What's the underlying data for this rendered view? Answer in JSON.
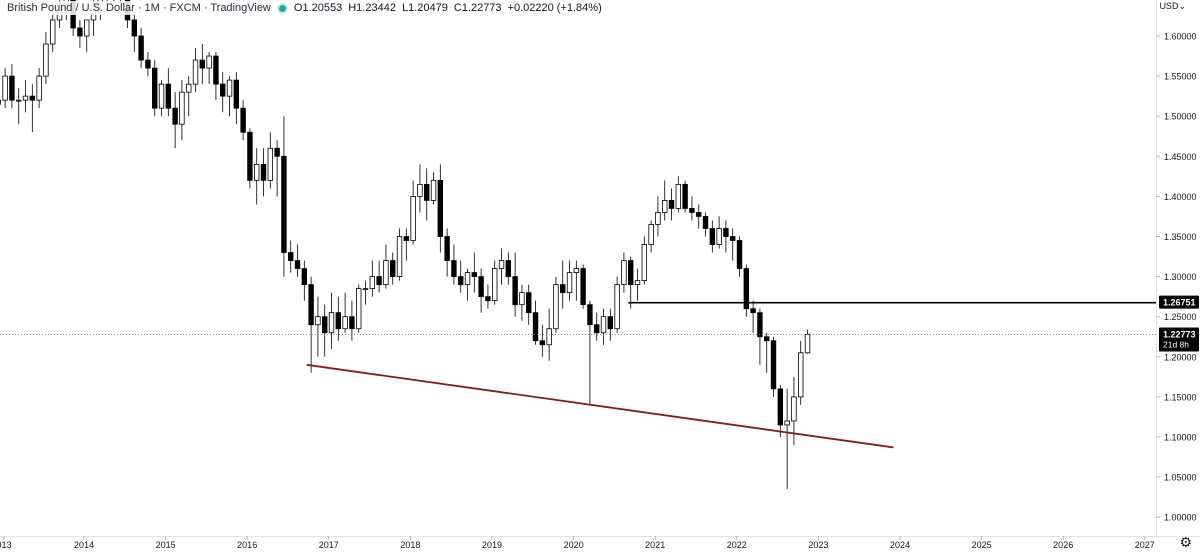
{
  "header": {
    "symbol": "British Pound / U.S. Dollar · 1M · FXCM · TradingView",
    "open_label": "O",
    "open": "1.20553",
    "high_label": "H",
    "high": "1.23442",
    "low_label": "L",
    "low": "1.20479",
    "close_label": "C",
    "close": "1.22773",
    "change": "+0.02220 (+1.84%)"
  },
  "price_scale": {
    "currency": "USD"
  },
  "chart_data": {
    "type": "candlestick",
    "interval": "1M",
    "y_ticks": [
      "1.60000",
      "1.55000",
      "1.50000",
      "1.45000",
      "1.40000",
      "1.35000",
      "1.30000",
      "1.25000",
      "1.20000",
      "1.15000",
      "1.10000",
      "1.05000",
      "1.00000"
    ],
    "x_ticks": [
      "013",
      "2014",
      "2015",
      "2016",
      "2017",
      "2018",
      "2019",
      "2020",
      "2021",
      "2022",
      "2023",
      "2024",
      "2025",
      "2026",
      "2027"
    ],
    "ylim": [
      0.985,
      1.665
    ],
    "xlim": [
      2013.0,
      2027.0
    ],
    "last_price": {
      "value": "1.22773",
      "countdown": "21d 8h"
    },
    "horizontal_level": {
      "value": "1.26751",
      "from_x": 2020.67
    },
    "trendline": {
      "from": [
        2016.73,
        1.19
      ],
      "to": [
        2023.92,
        1.087
      ],
      "color": "#8b1a1a"
    },
    "candles": [
      [
        1.515,
        1.54,
        1.505,
        1.52
      ],
      [
        1.52,
        1.56,
        1.51,
        1.55
      ],
      [
        1.55,
        1.565,
        1.51,
        1.52
      ],
      [
        1.52,
        1.535,
        1.49,
        1.52
      ],
      [
        1.52,
        1.545,
        1.505,
        1.525
      ],
      [
        1.525,
        1.54,
        1.48,
        1.52
      ],
      [
        1.52,
        1.56,
        1.51,
        1.55
      ],
      [
        1.55,
        1.605,
        1.54,
        1.59
      ],
      [
        1.59,
        1.64,
        1.58,
        1.62
      ],
      [
        1.62,
        1.65,
        1.61,
        1.64
      ],
      [
        1.64,
        1.66,
        1.62,
        1.65
      ],
      [
        1.65,
        1.66,
        1.6,
        1.61
      ],
      [
        1.61,
        1.62,
        1.585,
        1.6
      ],
      [
        1.6,
        1.62,
        1.58,
        1.62
      ],
      [
        1.62,
        1.66,
        1.6,
        1.64
      ],
      [
        1.64,
        1.67,
        1.62,
        1.655
      ],
      [
        1.655,
        1.665,
        1.63,
        1.66
      ],
      [
        1.66,
        1.67,
        1.64,
        1.65
      ],
      [
        1.65,
        1.665,
        1.635,
        1.65
      ],
      [
        1.65,
        1.66,
        1.61,
        1.62
      ],
      [
        1.62,
        1.63,
        1.58,
        1.6
      ],
      [
        1.6,
        1.61,
        1.56,
        1.57
      ],
      [
        1.57,
        1.58,
        1.55,
        1.56
      ],
      [
        1.56,
        1.57,
        1.5,
        1.51
      ],
      [
        1.51,
        1.545,
        1.5,
        1.54
      ],
      [
        1.54,
        1.56,
        1.5,
        1.51
      ],
      [
        1.51,
        1.53,
        1.46,
        1.49
      ],
      [
        1.49,
        1.545,
        1.47,
        1.53
      ],
      [
        1.53,
        1.55,
        1.5,
        1.54
      ],
      [
        1.54,
        1.585,
        1.53,
        1.57
      ],
      [
        1.57,
        1.59,
        1.54,
        1.56
      ],
      [
        1.56,
        1.58,
        1.54,
        1.575
      ],
      [
        1.575,
        1.58,
        1.52,
        1.54
      ],
      [
        1.54,
        1.555,
        1.505,
        1.525
      ],
      [
        1.525,
        1.55,
        1.5,
        1.545
      ],
      [
        1.545,
        1.555,
        1.49,
        1.51
      ],
      [
        1.51,
        1.52,
        1.47,
        1.48
      ],
      [
        1.48,
        1.485,
        1.41,
        1.42
      ],
      [
        1.42,
        1.46,
        1.39,
        1.44
      ],
      [
        1.44,
        1.46,
        1.4,
        1.42
      ],
      [
        1.42,
        1.48,
        1.41,
        1.46
      ],
      [
        1.46,
        1.47,
        1.4,
        1.45
      ],
      [
        1.45,
        1.5,
        1.3,
        1.33
      ],
      [
        1.33,
        1.345,
        1.305,
        1.32
      ],
      [
        1.32,
        1.34,
        1.3,
        1.31
      ],
      [
        1.31,
        1.32,
        1.27,
        1.29
      ],
      [
        1.29,
        1.3,
        1.18,
        1.24
      ],
      [
        1.24,
        1.275,
        1.2,
        1.25
      ],
      [
        1.25,
        1.265,
        1.2,
        1.23
      ],
      [
        1.23,
        1.28,
        1.21,
        1.255
      ],
      [
        1.255,
        1.275,
        1.22,
        1.235
      ],
      [
        1.235,
        1.28,
        1.23,
        1.25
      ],
      [
        1.25,
        1.27,
        1.22,
        1.235
      ],
      [
        1.235,
        1.29,
        1.23,
        1.285
      ],
      [
        1.285,
        1.295,
        1.265,
        1.285
      ],
      [
        1.285,
        1.32,
        1.275,
        1.3
      ],
      [
        1.3,
        1.32,
        1.28,
        1.29
      ],
      [
        1.29,
        1.34,
        1.285,
        1.32
      ],
      [
        1.32,
        1.33,
        1.29,
        1.3
      ],
      [
        1.3,
        1.36,
        1.295,
        1.35
      ],
      [
        1.35,
        1.36,
        1.32,
        1.345
      ],
      [
        1.345,
        1.42,
        1.34,
        1.4
      ],
      [
        1.4,
        1.44,
        1.38,
        1.415
      ],
      [
        1.415,
        1.435,
        1.37,
        1.395
      ],
      [
        1.395,
        1.43,
        1.39,
        1.42
      ],
      [
        1.42,
        1.44,
        1.33,
        1.35
      ],
      [
        1.35,
        1.36,
        1.3,
        1.32
      ],
      [
        1.32,
        1.34,
        1.29,
        1.3
      ],
      [
        1.3,
        1.32,
        1.28,
        1.29
      ],
      [
        1.29,
        1.31,
        1.27,
        1.305
      ],
      [
        1.305,
        1.33,
        1.28,
        1.3
      ],
      [
        1.3,
        1.31,
        1.255,
        1.275
      ],
      [
        1.275,
        1.29,
        1.26,
        1.27
      ],
      [
        1.27,
        1.32,
        1.265,
        1.31
      ],
      [
        1.31,
        1.335,
        1.29,
        1.32
      ],
      [
        1.32,
        1.33,
        1.29,
        1.3
      ],
      [
        1.3,
        1.33,
        1.25,
        1.265
      ],
      [
        1.265,
        1.29,
        1.245,
        1.28
      ],
      [
        1.28,
        1.29,
        1.24,
        1.255
      ],
      [
        1.255,
        1.27,
        1.215,
        1.22
      ],
      [
        1.22,
        1.24,
        1.2,
        1.215
      ],
      [
        1.215,
        1.26,
        1.195,
        1.235
      ],
      [
        1.235,
        1.3,
        1.23,
        1.29
      ],
      [
        1.29,
        1.32,
        1.26,
        1.28
      ],
      [
        1.28,
        1.32,
        1.27,
        1.305
      ],
      [
        1.305,
        1.32,
        1.27,
        1.31
      ],
      [
        1.31,
        1.315,
        1.26,
        1.265
      ],
      [
        1.265,
        1.27,
        1.14,
        1.24
      ],
      [
        1.24,
        1.255,
        1.22,
        1.23
      ],
      [
        1.23,
        1.26,
        1.215,
        1.25
      ],
      [
        1.25,
        1.26,
        1.22,
        1.235
      ],
      [
        1.235,
        1.3,
        1.23,
        1.29
      ],
      [
        1.29,
        1.33,
        1.28,
        1.32
      ],
      [
        1.32,
        1.325,
        1.26,
        1.29
      ],
      [
        1.29,
        1.31,
        1.27,
        1.295
      ],
      [
        1.295,
        1.35,
        1.29,
        1.34
      ],
      [
        1.34,
        1.37,
        1.33,
        1.365
      ],
      [
        1.365,
        1.4,
        1.35,
        1.38
      ],
      [
        1.38,
        1.42,
        1.37,
        1.395
      ],
      [
        1.395,
        1.41,
        1.37,
        1.385
      ],
      [
        1.385,
        1.425,
        1.38,
        1.415
      ],
      [
        1.415,
        1.42,
        1.38,
        1.385
      ],
      [
        1.385,
        1.4,
        1.37,
        1.38
      ],
      [
        1.38,
        1.39,
        1.36,
        1.375
      ],
      [
        1.375,
        1.38,
        1.35,
        1.36
      ],
      [
        1.36,
        1.37,
        1.33,
        1.34
      ],
      [
        1.34,
        1.375,
        1.335,
        1.36
      ],
      [
        1.36,
        1.37,
        1.33,
        1.35
      ],
      [
        1.35,
        1.36,
        1.32,
        1.345
      ],
      [
        1.345,
        1.35,
        1.3,
        1.31
      ],
      [
        1.31,
        1.315,
        1.25,
        1.26
      ],
      [
        1.26,
        1.27,
        1.23,
        1.255
      ],
      [
        1.255,
        1.26,
        1.19,
        1.225
      ],
      [
        1.225,
        1.23,
        1.18,
        1.22
      ],
      [
        1.22,
        1.225,
        1.15,
        1.16
      ],
      [
        1.16,
        1.165,
        1.1,
        1.115
      ],
      [
        1.115,
        1.16,
        1.035,
        1.12
      ],
      [
        1.12,
        1.175,
        1.09,
        1.15
      ],
      [
        1.15,
        1.22,
        1.14,
        1.205
      ],
      [
        1.205,
        1.234,
        1.204,
        1.228
      ]
    ]
  }
}
